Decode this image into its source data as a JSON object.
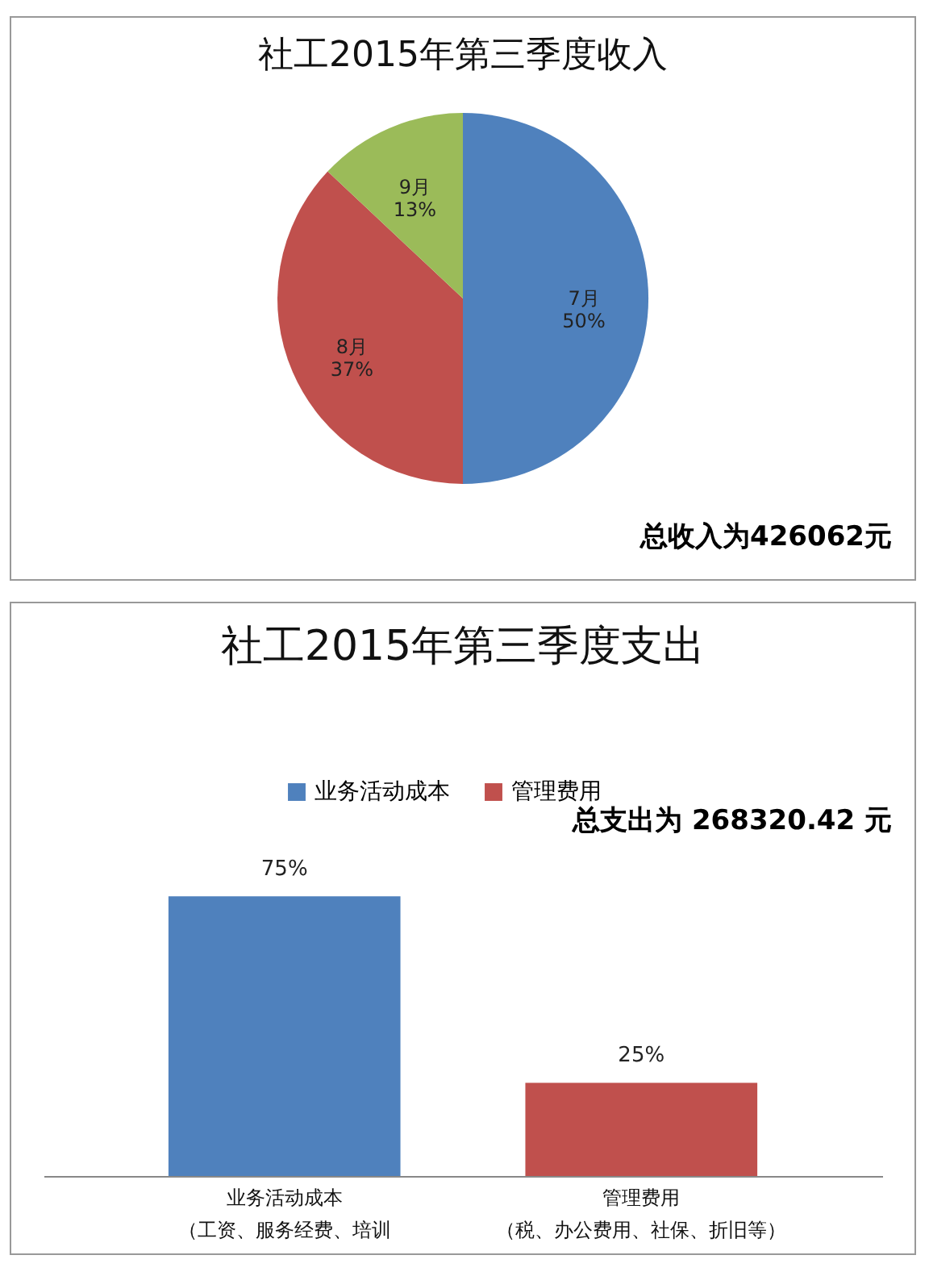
{
  "chart_data": [
    {
      "type": "pie",
      "title": "社工2015年第三季度收入",
      "categories": [
        "7月",
        "8月",
        "9月"
      ],
      "values": [
        50,
        37,
        13
      ],
      "colors": [
        "#4f81bd",
        "#c0504d",
        "#9bbb59"
      ],
      "value_labels": [
        "50%",
        "37%",
        "13%"
      ],
      "annotations": [
        "总收入为426062元"
      ]
    },
    {
      "type": "bar",
      "title": "社工2015年第三季度支出",
      "categories": [
        "业务活动成本（工资、服务经费、培训",
        "管理费用（税、办公费用、社保、折旧等）"
      ],
      "series": [
        {
          "name": "业务活动成本",
          "color": "#4f81bd",
          "values": [
            75,
            null
          ],
          "value_labels": [
            "75%",
            null
          ]
        },
        {
          "name": "管理费用",
          "color": "#c0504d",
          "values": [
            null,
            25
          ],
          "value_labels": [
            null,
            "25%"
          ]
        }
      ],
      "legend": "top",
      "annotations": [
        "总支出为 268320.42 元"
      ]
    }
  ]
}
